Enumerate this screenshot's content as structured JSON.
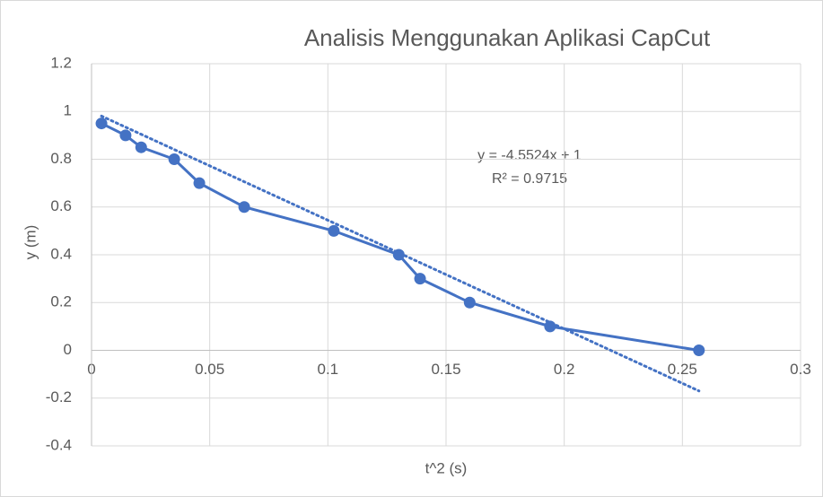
{
  "chart_data": {
    "type": "scatter",
    "title": "Analisis Menggunakan Aplikasi CapCut",
    "x_label": "t^2 (s)",
    "y_label": "y (m)",
    "series": [
      {
        "name": "y",
        "color": "#4472c4",
        "x": [
          0.0042,
          0.0144,
          0.021,
          0.035,
          0.0456,
          0.0646,
          0.1025,
          0.13,
          0.139,
          0.16,
          0.194,
          0.257
        ],
        "values": [
          0.95,
          0.9,
          0.85,
          0.8,
          0.7,
          0.6,
          0.5,
          0.4,
          0.3,
          0.2,
          0.1,
          0
        ]
      }
    ],
    "trendline": {
      "slope": -4.5524,
      "intercept": 1,
      "equation": "y = -4.5524x + 1",
      "r2": "R² = 0.9715"
    },
    "xlim": [
      0,
      0.3
    ],
    "xticks": [
      0,
      0.05,
      0.1,
      0.15,
      0.2,
      0.25,
      0.3
    ],
    "ylim": [
      -0.4,
      1.2
    ],
    "yticks": [
      -0.4,
      -0.2,
      0,
      0.2,
      0.4,
      0.6,
      0.8,
      1,
      1.2
    ],
    "grid": true
  }
}
